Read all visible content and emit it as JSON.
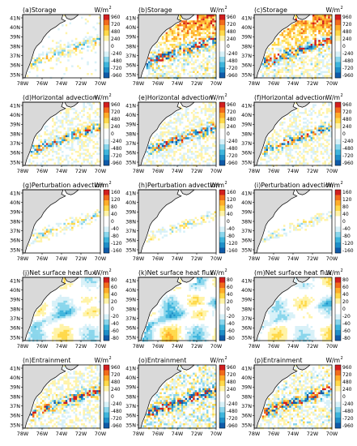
{
  "figure": {
    "rows": [
      {
        "colorbar": [
          960,
          720,
          480,
          240,
          0,
          -240,
          -480,
          -720,
          -960
        ],
        "cmin": -960,
        "cmax": 960,
        "panels": [
          {
            "label": "(a)Storage",
            "units": "W/m",
            "units_exp": "2",
            "amp": 0.35,
            "seed": 11
          },
          {
            "label": "(b)Storage",
            "units": "W/m",
            "units_exp": "2",
            "amp": 0.75,
            "seed": 12
          },
          {
            "label": "(c)Storage",
            "units": "W/m",
            "units_exp": "2",
            "amp": 0.7,
            "seed": 13
          }
        ]
      },
      {
        "colorbar": [
          960,
          720,
          480,
          240,
          0,
          -240,
          -480,
          -720,
          -960
        ],
        "cmin": -960,
        "cmax": 960,
        "panels": [
          {
            "label": "(d)Horizontal advection",
            "units": "W/m",
            "units_exp": "2",
            "amp": 0.55,
            "seed": 21
          },
          {
            "label": "(e)Horizontal advection",
            "units": "W/m",
            "units_exp": "2",
            "amp": 0.6,
            "seed": 22
          },
          {
            "label": "(f)Horizontal advection",
            "units": "W/m",
            "units_exp": "2",
            "amp": 0.55,
            "seed": 23
          }
        ]
      },
      {
        "colorbar": [
          160,
          120,
          80,
          40,
          0,
          -40,
          -80,
          -120,
          -160
        ],
        "cmin": -160,
        "cmax": 160,
        "panels": [
          {
            "label": "(g)Perturbation advection",
            "units": "W/m",
            "units_exp": "2",
            "amp": 0.3,
            "seed": 31
          },
          {
            "label": "(h)Perturbation advection",
            "units": "W/m",
            "units_exp": "2",
            "amp": 0.25,
            "seed": 32
          },
          {
            "label": "(i)Perturbation advection",
            "units": "W/m",
            "units_exp": "2",
            "amp": 0.25,
            "seed": 33
          }
        ]
      },
      {
        "colorbar": [
          80,
          60,
          40,
          20,
          0,
          -20,
          -40,
          -60,
          -80
        ],
        "cmin": -80,
        "cmax": 80,
        "panels": [
          {
            "label": "(j)Net surface heat flux",
            "units": "W/m",
            "units_exp": "2",
            "amp": 0.35,
            "seed": 41
          },
          {
            "label": "(k)Net surface heat flux",
            "units": "W/m",
            "units_exp": "2",
            "amp": 0.45,
            "seed": 42
          },
          {
            "label": "(m)Net surface heat flux",
            "units": "W/m",
            "units_exp": "2",
            "amp": 0.35,
            "seed": 43
          }
        ]
      },
      {
        "colorbar": [
          960,
          720,
          480,
          240,
          0,
          -240,
          -480,
          -720,
          -960
        ],
        "cmin": -960,
        "cmax": 960,
        "panels": [
          {
            "label": "(n)Entrainment",
            "units": "W/m",
            "units_exp": "2",
            "amp": 0.65,
            "seed": 51
          },
          {
            "label": "(o)Entrainment",
            "units": "W/m",
            "units_exp": "2",
            "amp": 0.8,
            "seed": 52
          },
          {
            "label": "(p)Entrainment",
            "units": "W/m",
            "units_exp": "2",
            "amp": 0.7,
            "seed": 53
          }
        ]
      }
    ],
    "lat_ticks": [
      "41N",
      "40N",
      "39N",
      "38N",
      "37N",
      "36N",
      "35N"
    ],
    "lon_ticks": [
      "78W",
      "76W",
      "74W",
      "72W",
      "70W"
    ],
    "colormap": [
      "#0f5aa8",
      "#1f8fc8",
      "#3fb5dc",
      "#8ad6ec",
      "#d8f1f8",
      "#ffffff",
      "#ffffff",
      "#fff3a8",
      "#ffd94a",
      "#ffad2a",
      "#f26b1d",
      "#d21f1f"
    ],
    "land_color": "#d9d9d9"
  },
  "chart_data": {
    "type": "heatmap",
    "layout": "5 rows x 3 columns of map panels",
    "latitude_range": [
      "35N",
      "41N"
    ],
    "longitude_range": [
      "78W",
      "70W"
    ],
    "units": "W/m2",
    "panels": [
      {
        "id": "a",
        "title": "(a)Storage",
        "color_range": [
          -960,
          960
        ]
      },
      {
        "id": "b",
        "title": "(b)Storage",
        "color_range": [
          -960,
          960
        ]
      },
      {
        "id": "c",
        "title": "(c)Storage",
        "color_range": [
          -960,
          960
        ]
      },
      {
        "id": "d",
        "title": "(d)Horizontal advection",
        "color_range": [
          -960,
          960
        ]
      },
      {
        "id": "e",
        "title": "(e)Horizontal advection",
        "color_range": [
          -960,
          960
        ]
      },
      {
        "id": "f",
        "title": "(f)Horizontal advection",
        "color_range": [
          -960,
          960
        ]
      },
      {
        "id": "g",
        "title": "(g)Perturbation advection",
        "color_range": [
          -160,
          160
        ]
      },
      {
        "id": "h",
        "title": "(h)Perturbation advection",
        "color_range": [
          -160,
          160
        ]
      },
      {
        "id": "i",
        "title": "(i)Perturbation advection",
        "color_range": [
          -160,
          160
        ]
      },
      {
        "id": "j",
        "title": "(j)Net surface heat flux",
        "color_range": [
          -80,
          80
        ]
      },
      {
        "id": "k",
        "title": "(k)Net surface heat flux",
        "color_range": [
          -80,
          80
        ]
      },
      {
        "id": "m",
        "title": "(m)Net surface heat flux",
        "color_range": [
          -80,
          80
        ]
      },
      {
        "id": "n",
        "title": "(n)Entrainment",
        "color_range": [
          -960,
          960
        ]
      },
      {
        "id": "o",
        "title": "(o)Entrainment",
        "color_range": [
          -960,
          960
        ]
      },
      {
        "id": "p",
        "title": "(p)Entrainment",
        "color_range": [
          -960,
          960
        ]
      }
    ]
  }
}
